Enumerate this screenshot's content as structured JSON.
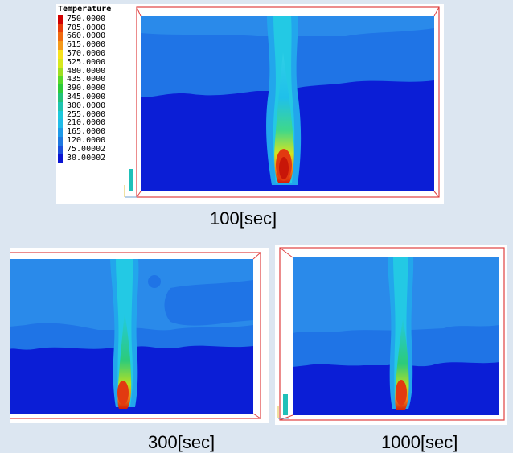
{
  "legend": {
    "title": "Temperature",
    "labels": [
      "750.0000",
      "705.0000",
      "660.0000",
      "615.0000",
      "570.0000",
      "525.0000",
      "480.0000",
      "435.0000",
      "390.0000",
      "345.0000",
      "300.0000",
      "255.0000",
      "210.0000",
      "165.0000",
      "120.0000",
      "75.00002",
      "30.00002"
    ],
    "colors": [
      "#d10000",
      "#e83c0a",
      "#f06a10",
      "#f59a1a",
      "#f7e21e",
      "#d6e81e",
      "#9fde22",
      "#58d82a",
      "#2ccb3a",
      "#22c27a",
      "#1ec4b0",
      "#1ec8dc",
      "#22bce8",
      "#1e9ae8",
      "#1e78e0",
      "#1a4edc",
      "#0a14d2"
    ]
  },
  "panels": [
    {
      "caption": "100[sec]"
    },
    {
      "caption": "300[sec]"
    },
    {
      "caption": "1000[sec]"
    }
  ],
  "colors": {
    "background": "#dce6f1",
    "cold": "#0a1ad4",
    "mid": "#1f74e6",
    "warm": "#23c9e4",
    "hot": "#e23a10"
  }
}
